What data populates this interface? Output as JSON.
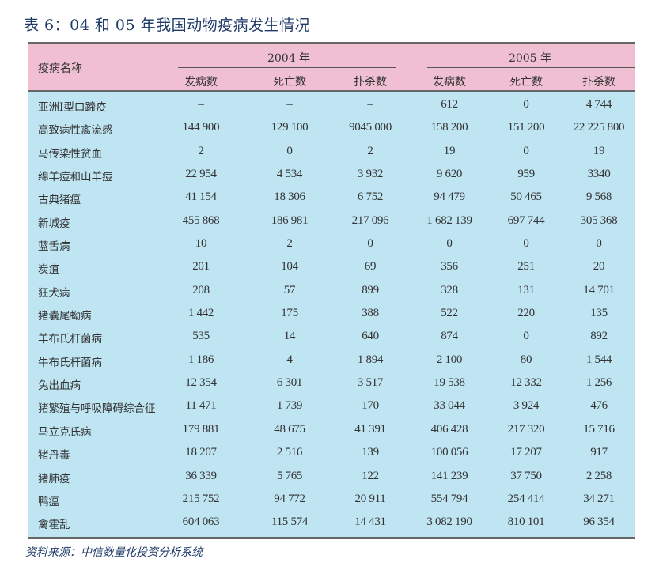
{
  "title": {
    "prefix": "表 6：",
    "text": "04 和 05 年我国动物疫病发生情况"
  },
  "table": {
    "name_header": "疫病名称",
    "years": [
      "2004 年",
      "2005 年"
    ],
    "subheaders": [
      "发病数",
      "死亡数",
      "扑杀数",
      "发病数",
      "死亡数",
      "扑杀数"
    ],
    "rows": [
      {
        "name": "亚洲Ⅰ型口蹄疫",
        "values": [
          "–",
          "–",
          "–",
          "612",
          "0",
          "4 744"
        ]
      },
      {
        "name": "高致病性禽流感",
        "values": [
          "144 900",
          "129 100",
          "9045 000",
          "158 200",
          "151 200",
          "22 225 800"
        ]
      },
      {
        "name": "马传染性贫血",
        "values": [
          "2",
          "0",
          "2",
          "19",
          "0",
          "19"
        ]
      },
      {
        "name": "绵羊痘和山羊痘",
        "values": [
          "22 954",
          "4 534",
          "3 932",
          "9 620",
          "959",
          "3340"
        ]
      },
      {
        "name": "古典猪瘟",
        "values": [
          "41 154",
          "18 306",
          "6 752",
          "94 479",
          "50 465",
          "9 568"
        ]
      },
      {
        "name": "新城疫",
        "values": [
          "455 868",
          "186 981",
          "217 096",
          "1 682 139",
          "697 744",
          "305 368"
        ]
      },
      {
        "name": "蓝舌病",
        "values": [
          "10",
          "2",
          "0",
          "0",
          "0",
          "0"
        ]
      },
      {
        "name": "炭疽",
        "values": [
          "201",
          "104",
          "69",
          "356",
          "251",
          "20"
        ]
      },
      {
        "name": "狂犬病",
        "values": [
          "208",
          "57",
          "899",
          "328",
          "131",
          "14 701"
        ]
      },
      {
        "name": "猪囊尾蚴病",
        "values": [
          "1 442",
          "175",
          "388",
          "522",
          "220",
          "135"
        ]
      },
      {
        "name": "羊布氏杆菌病",
        "values": [
          "535",
          "14",
          "640",
          "874",
          "0",
          "892"
        ]
      },
      {
        "name": "牛布氏杆菌病",
        "values": [
          "1 186",
          "4",
          "1 894",
          "2 100",
          "80",
          "1 544"
        ]
      },
      {
        "name": "兔出血病",
        "values": [
          "12 354",
          "6 301",
          "3 517",
          "19 538",
          "12 332",
          "1 256"
        ]
      },
      {
        "name": "猪繁殖与呼吸障碍综合征",
        "values": [
          "11 471",
          "1 739",
          "170",
          "33 044",
          "3 924",
          "476"
        ]
      },
      {
        "name": "马立克氏病",
        "values": [
          "179 881",
          "48 675",
          "41 391",
          "406 428",
          "217 320",
          "15 716"
        ]
      },
      {
        "name": "猪丹毒",
        "values": [
          "18 207",
          "2 516",
          "139",
          "100 056",
          "17 207",
          "917"
        ]
      },
      {
        "name": "猪肺疫",
        "values": [
          "36 339",
          "5 765",
          "122",
          "141 239",
          "37 750",
          "2 258"
        ]
      },
      {
        "name": "鸭瘟",
        "values": [
          "215 752",
          "94 772",
          "20 911",
          "554 794",
          "254 414",
          "34 271"
        ]
      },
      {
        "name": "禽霍乱",
        "values": [
          "604 063",
          "115 574",
          "14 431",
          "3 082 190",
          "810 101",
          "96 354"
        ]
      }
    ]
  },
  "source": "资料来源：中信数量化投资分析系统",
  "colors": {
    "header_bg": "#f0bfd2",
    "body_bg": "#bfe4f2",
    "title": "#1f3a68"
  }
}
